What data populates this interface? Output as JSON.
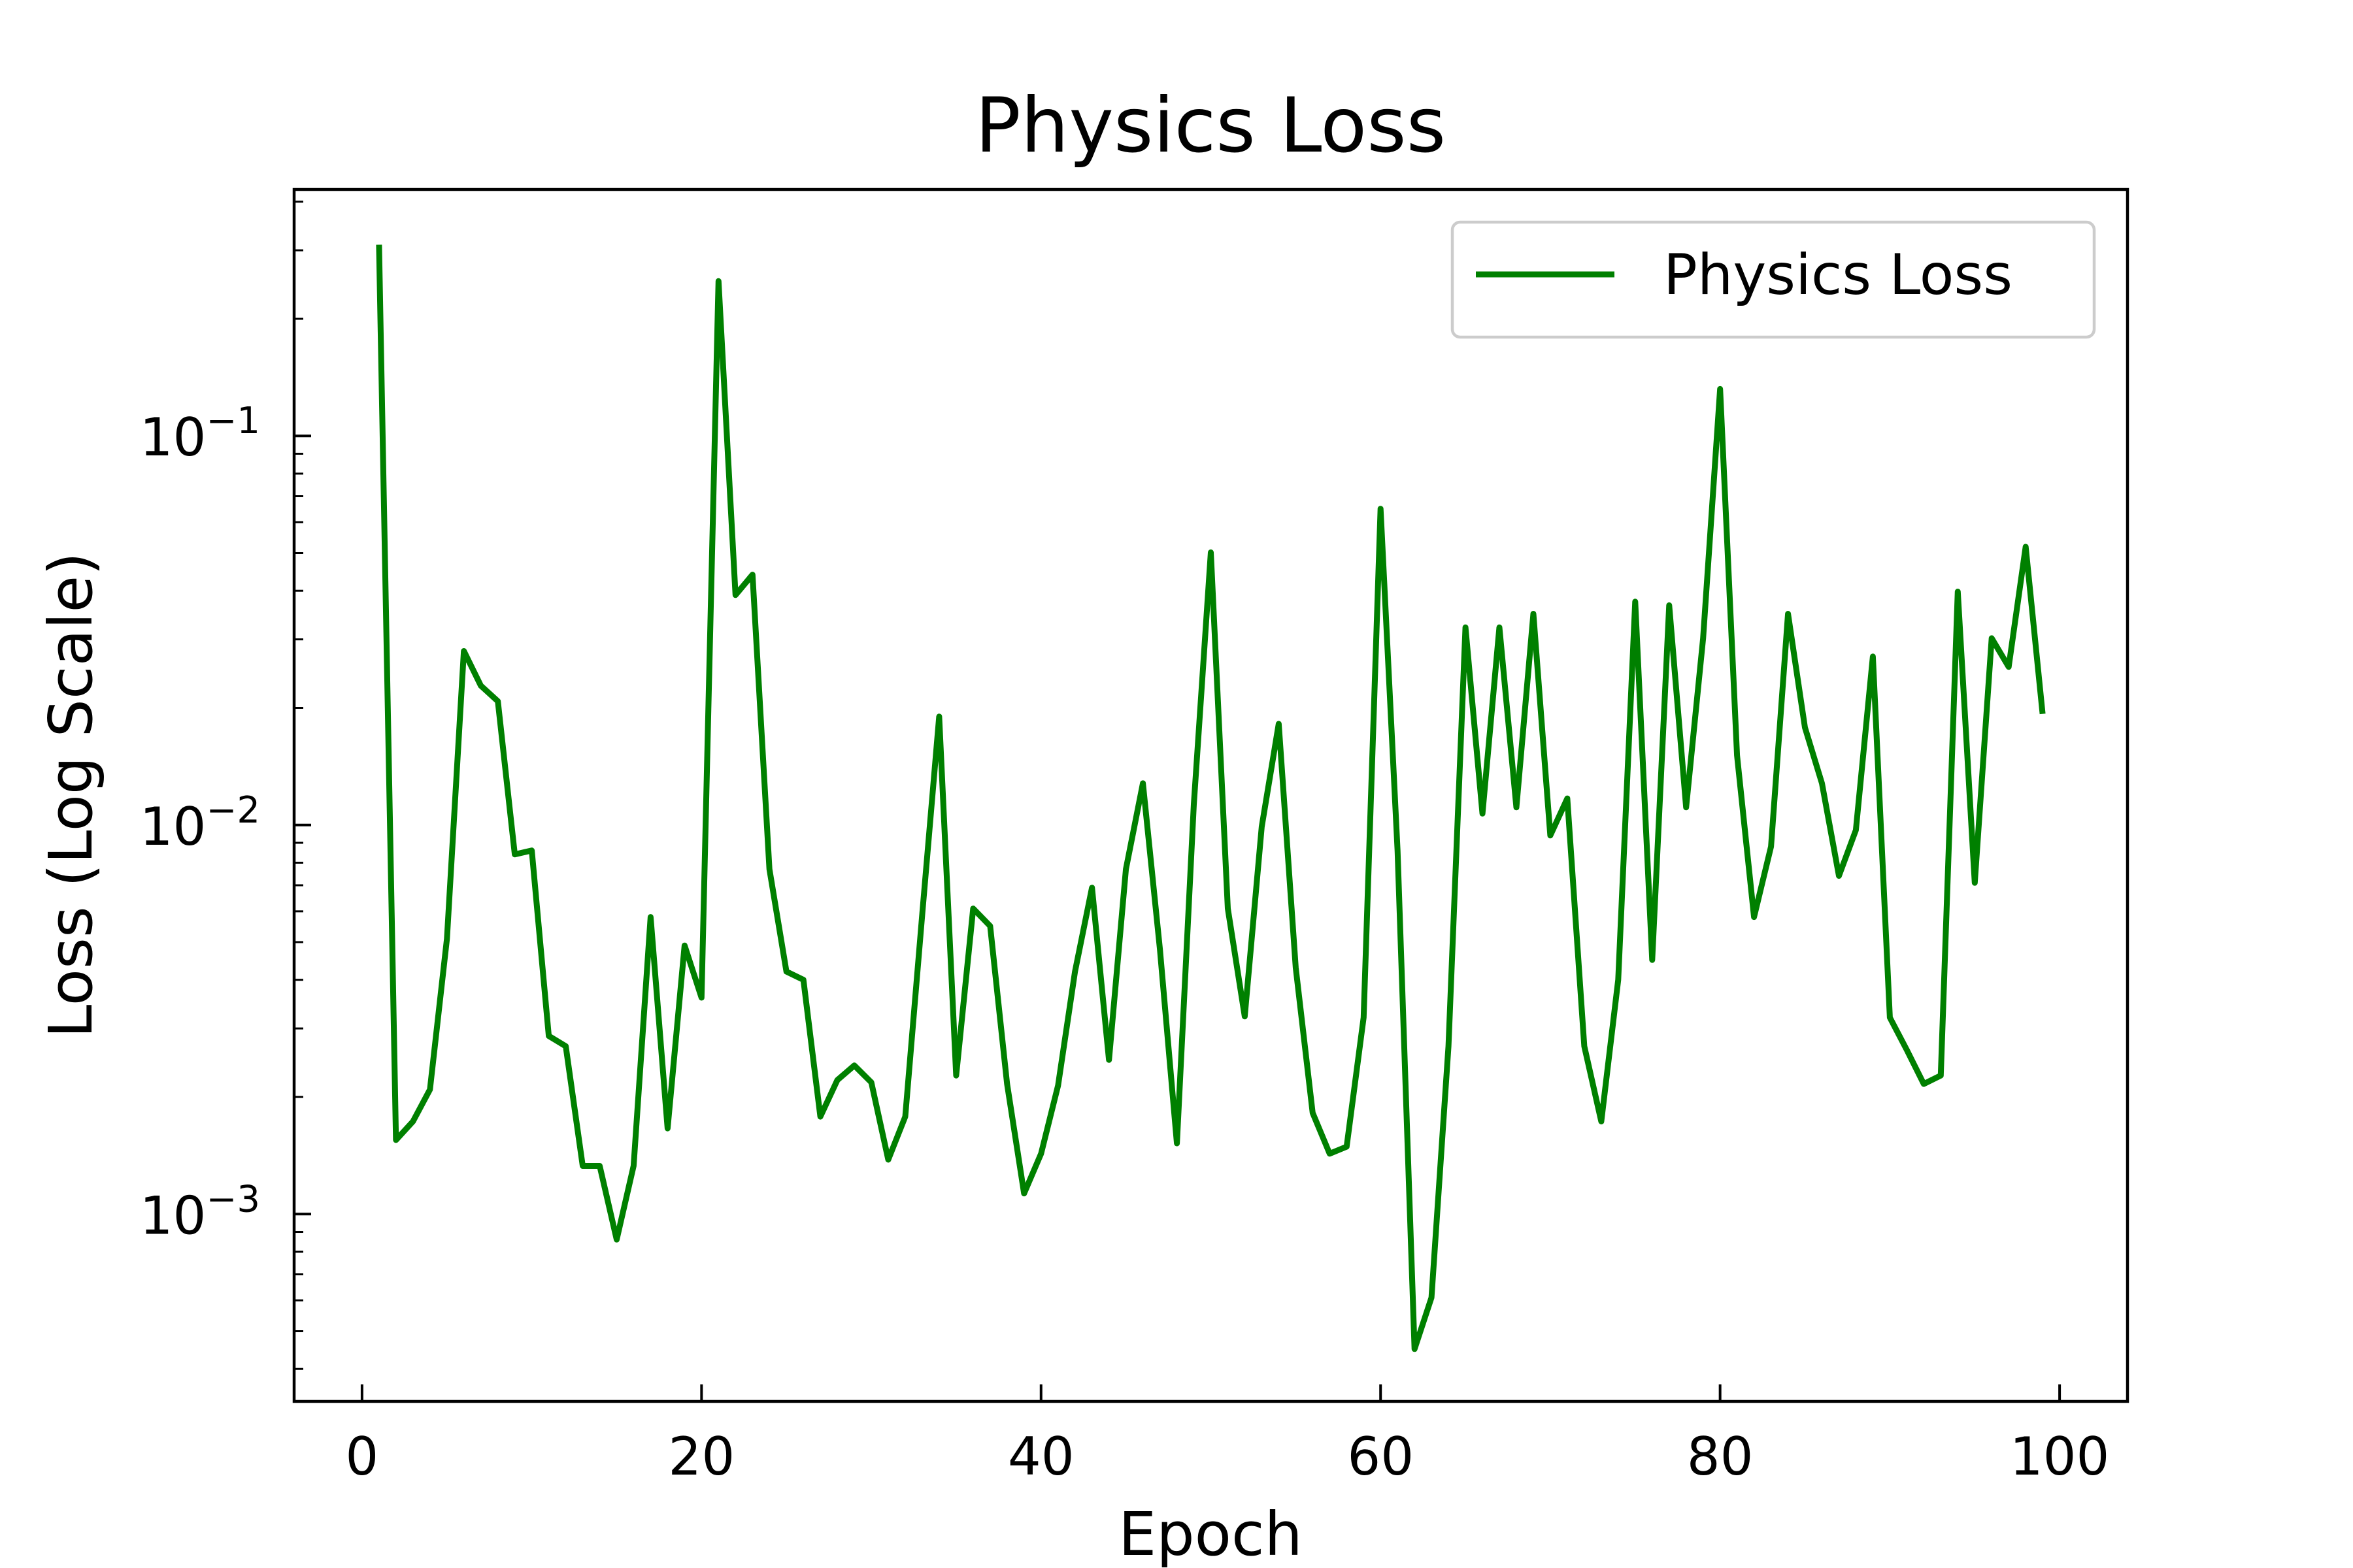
{
  "chart_data": {
    "type": "line",
    "title": "Physics Loss",
    "xlabel": "Epoch",
    "ylabel": "Loss (Log Scale)",
    "yscale": "log",
    "xlim": [
      -4,
      104
    ],
    "ylim": [
      0.00033,
      0.43
    ],
    "xticks": [
      0,
      20,
      40,
      60,
      80,
      100
    ],
    "yticks": [
      {
        "value": 0.001,
        "base": "10",
        "exp": "−3"
      },
      {
        "value": 0.01,
        "base": "10",
        "exp": "−2"
      },
      {
        "value": 0.1,
        "base": "10",
        "exp": "−1"
      }
    ],
    "grid": false,
    "legend_position": "upper right",
    "color": "#008000",
    "series": [
      {
        "name": "Physics Loss",
        "x": [
          1,
          2,
          3,
          4,
          5,
          6,
          7,
          8,
          9,
          10,
          11,
          12,
          13,
          14,
          15,
          16,
          17,
          18,
          19,
          20,
          21,
          22,
          23,
          24,
          25,
          26,
          27,
          28,
          29,
          30,
          31,
          32,
          33,
          34,
          35,
          36,
          37,
          38,
          39,
          40,
          41,
          42,
          43,
          44,
          45,
          46,
          47,
          48,
          49,
          50,
          51,
          52,
          53,
          54,
          55,
          56,
          57,
          58,
          59,
          60,
          61,
          62,
          63,
          64,
          65,
          66,
          67,
          68,
          69,
          70,
          71,
          72,
          73,
          74,
          75,
          76,
          77,
          78,
          79,
          80,
          81,
          82,
          83,
          84,
          85,
          86,
          87,
          88,
          89,
          90,
          91,
          92,
          93,
          94,
          95,
          96,
          97,
          98,
          99
        ],
        "values": [
          0.31,
          0.00155,
          0.00173,
          0.00209,
          0.0051,
          0.028,
          0.0228,
          0.0208,
          0.0084,
          0.0086,
          0.00287,
          0.0027,
          0.00133,
          0.00133,
          0.00086,
          0.00133,
          0.0058,
          0.00166,
          0.0049,
          0.0036,
          0.25,
          0.039,
          0.044,
          0.0077,
          0.0042,
          0.004,
          0.00178,
          0.00221,
          0.00241,
          0.00218,
          0.00138,
          0.00178,
          0.0059,
          0.019,
          0.00227,
          0.0061,
          0.0055,
          0.00216,
          0.00113,
          0.00143,
          0.00214,
          0.0042,
          0.0069,
          0.00249,
          0.0077,
          0.0128,
          0.0048,
          0.00152,
          0.0113,
          0.0502,
          0.0061,
          0.00322,
          0.0099,
          0.0182,
          0.0043,
          0.00182,
          0.00143,
          0.00149,
          0.0032,
          0.065,
          0.0086,
          0.00045,
          0.00061,
          0.0027,
          0.0322,
          0.0107,
          0.0322,
          0.0111,
          0.0349,
          0.0094,
          0.0117,
          0.0027,
          0.00173,
          0.004,
          0.0375,
          0.0045,
          0.0367,
          0.0111,
          0.0302,
          0.132,
          0.0151,
          0.0058,
          0.0088,
          0.0349,
          0.0178,
          0.0128,
          0.0074,
          0.0097,
          0.0271,
          0.0032,
          0.00264,
          0.00216,
          0.00227,
          0.0398,
          0.0071,
          0.0302,
          0.0255,
          0.0519,
          0.0193
        ]
      }
    ]
  }
}
